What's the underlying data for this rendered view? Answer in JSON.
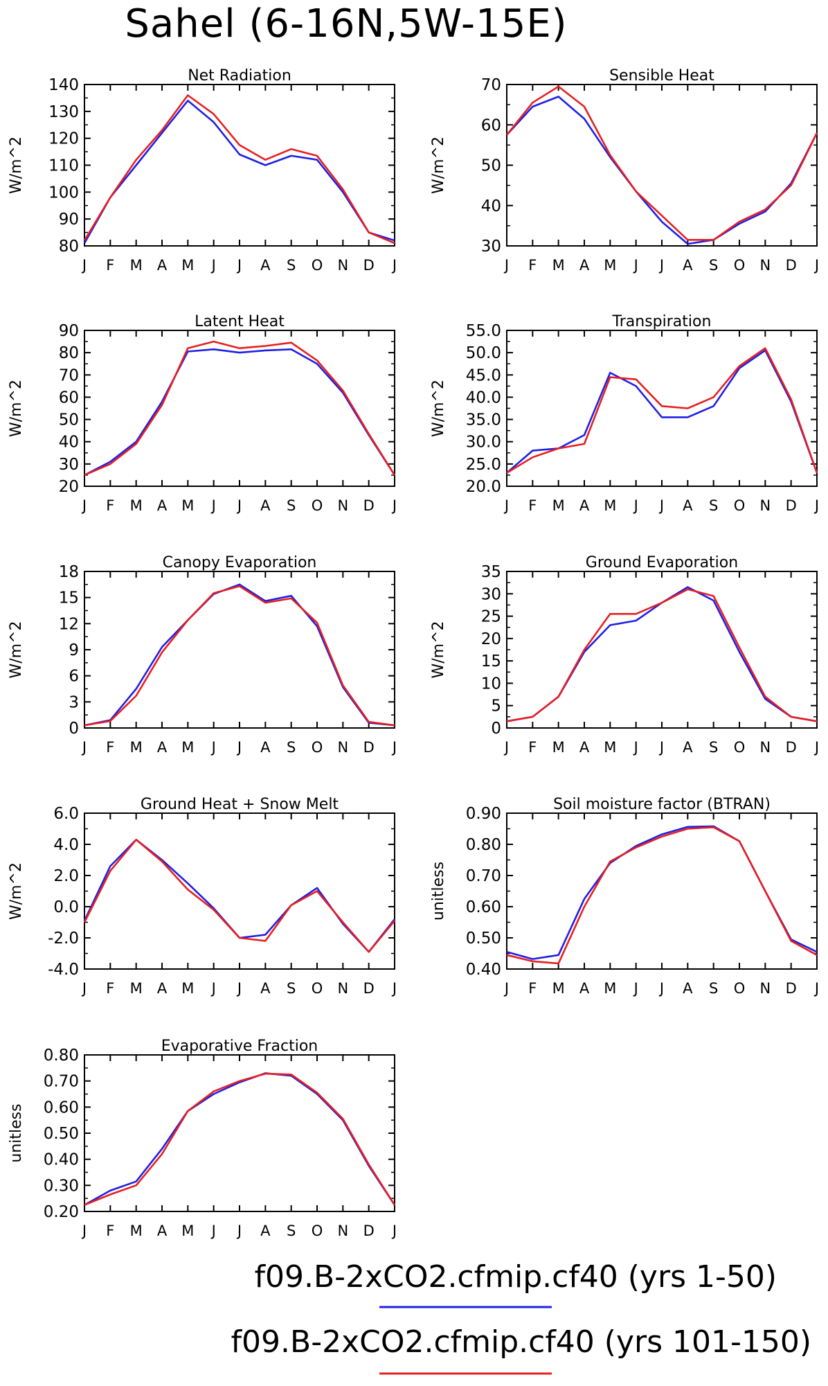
{
  "title": "Sahel (6-16N,5W-15E)",
  "colors": {
    "series1": "#1f1fe6",
    "series2": "#e61f1f",
    "axis": "#000000"
  },
  "months": [
    "J",
    "F",
    "M",
    "A",
    "M",
    "J",
    "J",
    "A",
    "S",
    "O",
    "N",
    "D",
    "J"
  ],
  "legend": {
    "entries": [
      {
        "text": "f09.B-2xCO2.cfmip.cf40 (yrs 1-50)",
        "color": "#1f1fe6"
      },
      {
        "text": "f09.B-2xCO2.cfmip.cf40 (yrs 101-150)",
        "color": "#e61f1f"
      }
    ]
  },
  "chart_data": [
    {
      "type": "line",
      "title": "Net Radiation",
      "ylabel": "W/m^2",
      "ylim": [
        80,
        140
      ],
      "yticks": [
        "80",
        "90",
        "100",
        "110",
        "120",
        "130",
        "140"
      ],
      "categories": [
        "J",
        "F",
        "M",
        "A",
        "M",
        "J",
        "J",
        "A",
        "S",
        "O",
        "N",
        "D",
        "J"
      ],
      "series": [
        {
          "values": [
            81,
            98,
            110,
            122,
            134,
            126,
            114,
            110,
            113.5,
            112,
            100,
            85,
            82
          ]
        },
        {
          "values": [
            82,
            98,
            112,
            123,
            136,
            129,
            117.5,
            112,
            116,
            113.5,
            101,
            85,
            81
          ]
        }
      ]
    },
    {
      "type": "line",
      "title": "Sensible Heat",
      "ylabel": "W/m^2",
      "ylim": [
        30,
        70
      ],
      "yticks": [
        "30",
        "40",
        "50",
        "60",
        "70"
      ],
      "categories": [
        "J",
        "F",
        "M",
        "A",
        "M",
        "J",
        "J",
        "A",
        "S",
        "O",
        "N",
        "D",
        "J"
      ],
      "series": [
        {
          "values": [
            57.5,
            64.5,
            67,
            61.5,
            52,
            43.5,
            36,
            30.5,
            31.5,
            35.5,
            38.5,
            45.5,
            58
          ]
        },
        {
          "values": [
            57.5,
            65.5,
            69.5,
            64.5,
            52.5,
            43.5,
            37.5,
            31.5,
            31.5,
            36,
            39,
            45,
            58
          ]
        }
      ]
    },
    {
      "type": "line",
      "title": "Latent Heat",
      "ylabel": "W/m^2",
      "ylim": [
        20,
        90
      ],
      "yticks": [
        "20",
        "30",
        "40",
        "50",
        "60",
        "70",
        "80",
        "90"
      ],
      "categories": [
        "J",
        "F",
        "M",
        "A",
        "M",
        "J",
        "J",
        "A",
        "S",
        "O",
        "N",
        "D",
        "J"
      ],
      "series": [
        {
          "values": [
            25,
            31,
            40,
            58,
            80.5,
            81.5,
            80,
            81,
            81.5,
            75,
            62,
            43,
            25
          ]
        },
        {
          "values": [
            25,
            30,
            39,
            56.5,
            82,
            85,
            82,
            83,
            84.5,
            76.5,
            63,
            43.5,
            25
          ]
        }
      ]
    },
    {
      "type": "line",
      "title": "Transpiration",
      "ylabel": "W/m^2",
      "ylim": [
        20,
        55
      ],
      "yticks": [
        "20.0",
        "25.0",
        "30.0",
        "35.0",
        "40.0",
        "45.0",
        "50.0",
        "55.0"
      ],
      "categories": [
        "J",
        "F",
        "M",
        "A",
        "M",
        "J",
        "J",
        "A",
        "S",
        "O",
        "N",
        "D",
        "J"
      ],
      "series": [
        {
          "values": [
            23,
            28,
            28.5,
            31.5,
            45.5,
            42.5,
            35.5,
            35.5,
            38,
            46.5,
            50.5,
            39,
            23
          ]
        },
        {
          "values": [
            23,
            26.5,
            28.5,
            29.5,
            44.5,
            44,
            38,
            37.5,
            40,
            47,
            51,
            39.5,
            23
          ]
        }
      ]
    },
    {
      "type": "line",
      "title": "Canopy Evaporation",
      "ylabel": "W/m^2",
      "ylim": [
        0,
        18
      ],
      "yticks": [
        "0",
        "3",
        "6",
        "9",
        "12",
        "15",
        "18"
      ],
      "categories": [
        "J",
        "F",
        "M",
        "A",
        "M",
        "J",
        "J",
        "A",
        "S",
        "O",
        "N",
        "D",
        "J"
      ],
      "series": [
        {
          "values": [
            0.3,
            0.9,
            4.5,
            9.3,
            12.4,
            15.4,
            16.5,
            14.6,
            15.2,
            11.7,
            4.7,
            0.6,
            0.3
          ]
        },
        {
          "values": [
            0.3,
            0.8,
            3.7,
            8.7,
            12.4,
            15.5,
            16.3,
            14.4,
            14.9,
            12.1,
            4.9,
            0.7,
            0.3
          ]
        }
      ]
    },
    {
      "type": "line",
      "title": "Ground Evaporation",
      "ylabel": "W/m^2",
      "ylim": [
        0,
        35
      ],
      "yticks": [
        "0",
        "5",
        "10",
        "15",
        "20",
        "25",
        "30",
        "35"
      ],
      "categories": [
        "J",
        "F",
        "M",
        "A",
        "M",
        "J",
        "J",
        "A",
        "S",
        "O",
        "N",
        "D",
        "J"
      ],
      "series": [
        {
          "values": [
            1.5,
            2.5,
            7,
            17,
            23,
            24,
            28,
            31.5,
            28.5,
            17,
            6.5,
            2.5,
            1.5
          ]
        },
        {
          "values": [
            1.5,
            2.5,
            7,
            17.5,
            25.5,
            25.5,
            28,
            31,
            29.5,
            18,
            7,
            2.5,
            1.5
          ]
        }
      ]
    },
    {
      "type": "line",
      "title": "Ground Heat + Snow Melt",
      "ylabel": "W/m^2",
      "ylim": [
        -4,
        6
      ],
      "yticks": [
        "-4.0",
        "-2.0",
        "0.0",
        "2.0",
        "4.0",
        "6.0"
      ],
      "categories": [
        "J",
        "F",
        "M",
        "A",
        "M",
        "J",
        "J",
        "A",
        "S",
        "O",
        "N",
        "D",
        "J"
      ],
      "series": [
        {
          "values": [
            -0.9,
            2.6,
            4.3,
            3.0,
            1.5,
            -0.1,
            -2.0,
            -1.8,
            0.1,
            1.2,
            -1.1,
            -2.9,
            -0.8
          ]
        },
        {
          "values": [
            -1.0,
            2.3,
            4.3,
            2.9,
            1.1,
            -0.2,
            -2.0,
            -2.2,
            0.1,
            1.0,
            -1.0,
            -2.9,
            -0.9
          ]
        }
      ]
    },
    {
      "type": "line",
      "title": "Soil moisture factor (BTRAN)",
      "ylabel": "unitless",
      "ylim": [
        0.4,
        0.9
      ],
      "yticks": [
        "0.40",
        "0.50",
        "0.60",
        "0.70",
        "0.80",
        "0.90"
      ],
      "categories": [
        "J",
        "F",
        "M",
        "A",
        "M",
        "J",
        "J",
        "A",
        "S",
        "O",
        "N",
        "D",
        "J"
      ],
      "series": [
        {
          "values": [
            0.455,
            0.432,
            0.445,
            0.625,
            0.74,
            0.795,
            0.832,
            0.856,
            0.858,
            0.81,
            0.65,
            0.495,
            0.455
          ]
        },
        {
          "values": [
            0.445,
            0.425,
            0.418,
            0.6,
            0.745,
            0.79,
            0.825,
            0.85,
            0.855,
            0.81,
            0.65,
            0.49,
            0.445
          ]
        }
      ]
    },
    {
      "type": "line",
      "title": "Evaporative Fraction",
      "ylabel": "unitless",
      "ylim": [
        0.2,
        0.8
      ],
      "yticks": [
        "0.20",
        "0.30",
        "0.40",
        "0.50",
        "0.60",
        "0.70",
        "0.80"
      ],
      "categories": [
        "J",
        "F",
        "M",
        "A",
        "M",
        "J",
        "J",
        "A",
        "S",
        "O",
        "N",
        "D",
        "J"
      ],
      "series": [
        {
          "values": [
            0.225,
            0.28,
            0.315,
            0.44,
            0.585,
            0.65,
            0.695,
            0.73,
            0.72,
            0.65,
            0.55,
            0.375,
            0.225
          ]
        },
        {
          "values": [
            0.225,
            0.265,
            0.3,
            0.42,
            0.585,
            0.66,
            0.7,
            0.728,
            0.725,
            0.655,
            0.555,
            0.38,
            0.225
          ]
        }
      ]
    }
  ]
}
